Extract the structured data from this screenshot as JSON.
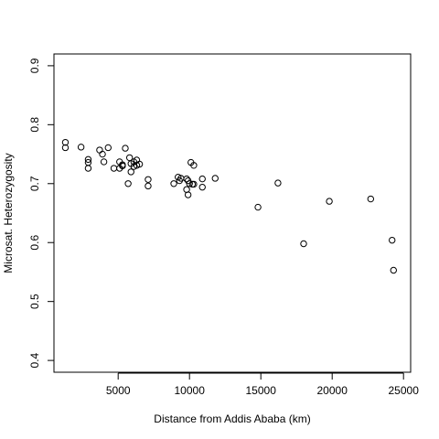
{
  "chart_data": {
    "type": "scatter",
    "title": "",
    "xlabel": "Distance from Addis Ababa (km)",
    "ylabel": "Microsat. Heterozygosity",
    "xlim": [
      500,
      25500
    ],
    "ylim": [
      0.38,
      0.92
    ],
    "xticks": [
      5000,
      10000,
      15000,
      20000,
      25000
    ],
    "yticks": [
      0.4,
      0.5,
      0.6,
      0.7,
      0.8,
      0.9
    ],
    "grid": false,
    "legend": "none",
    "marker": "open-circle",
    "points": [
      {
        "x": 1300,
        "y": 0.77
      },
      {
        "x": 1300,
        "y": 0.761
      },
      {
        "x": 2400,
        "y": 0.762
      },
      {
        "x": 2900,
        "y": 0.741
      },
      {
        "x": 2900,
        "y": 0.736
      },
      {
        "x": 2900,
        "y": 0.726
      },
      {
        "x": 3700,
        "y": 0.757
      },
      {
        "x": 3900,
        "y": 0.75
      },
      {
        "x": 4000,
        "y": 0.737
      },
      {
        "x": 4300,
        "y": 0.761
      },
      {
        "x": 4700,
        "y": 0.726
      },
      {
        "x": 5100,
        "y": 0.737
      },
      {
        "x": 5100,
        "y": 0.726
      },
      {
        "x": 5300,
        "y": 0.732
      },
      {
        "x": 5300,
        "y": 0.73
      },
      {
        "x": 5500,
        "y": 0.76
      },
      {
        "x": 5700,
        "y": 0.7
      },
      {
        "x": 5800,
        "y": 0.744
      },
      {
        "x": 5900,
        "y": 0.734
      },
      {
        "x": 5900,
        "y": 0.72
      },
      {
        "x": 6100,
        "y": 0.737
      },
      {
        "x": 6100,
        "y": 0.729
      },
      {
        "x": 6300,
        "y": 0.74
      },
      {
        "x": 6300,
        "y": 0.731
      },
      {
        "x": 6500,
        "y": 0.733
      },
      {
        "x": 7100,
        "y": 0.707
      },
      {
        "x": 7100,
        "y": 0.696
      },
      {
        "x": 8900,
        "y": 0.7
      },
      {
        "x": 9200,
        "y": 0.711
      },
      {
        "x": 9300,
        "y": 0.705
      },
      {
        "x": 9400,
        "y": 0.709
      },
      {
        "x": 9800,
        "y": 0.708
      },
      {
        "x": 9800,
        "y": 0.69
      },
      {
        "x": 9900,
        "y": 0.705
      },
      {
        "x": 9900,
        "y": 0.681
      },
      {
        "x": 10000,
        "y": 0.7
      },
      {
        "x": 10100,
        "y": 0.736
      },
      {
        "x": 10200,
        "y": 0.699
      },
      {
        "x": 10300,
        "y": 0.731
      },
      {
        "x": 10300,
        "y": 0.699
      },
      {
        "x": 10900,
        "y": 0.708
      },
      {
        "x": 10900,
        "y": 0.694
      },
      {
        "x": 11800,
        "y": 0.709
      },
      {
        "x": 14800,
        "y": 0.66
      },
      {
        "x": 16200,
        "y": 0.701
      },
      {
        "x": 18000,
        "y": 0.598
      },
      {
        "x": 19800,
        "y": 0.67
      },
      {
        "x": 22700,
        "y": 0.674
      },
      {
        "x": 24200,
        "y": 0.604
      },
      {
        "x": 24300,
        "y": 0.553
      }
    ]
  }
}
